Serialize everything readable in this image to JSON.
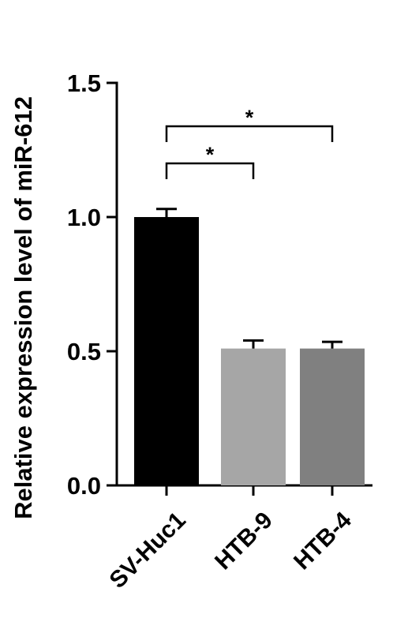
{
  "chart_data": {
    "type": "bar",
    "ylabel": "Relative expression level of miR-612",
    "ylim": [
      0,
      1.5
    ],
    "yticks": [
      0.0,
      0.5,
      1.0,
      1.5
    ],
    "ytick_labels": [
      "0.0",
      "0.5",
      "1.0",
      "1.5"
    ],
    "categories": [
      "SV-Huc1",
      "HTB-9",
      "HTB-4"
    ],
    "values": [
      1.0,
      0.51,
      0.51
    ],
    "error": [
      0.03,
      0.03,
      0.025
    ],
    "bar_colors": [
      "#000000",
      "#a6a6a6",
      "#808080"
    ],
    "significance": [
      {
        "from": 0,
        "to": 1,
        "label": "*"
      },
      {
        "from": 0,
        "to": 2,
        "label": "*"
      }
    ],
    "grid": false
  }
}
